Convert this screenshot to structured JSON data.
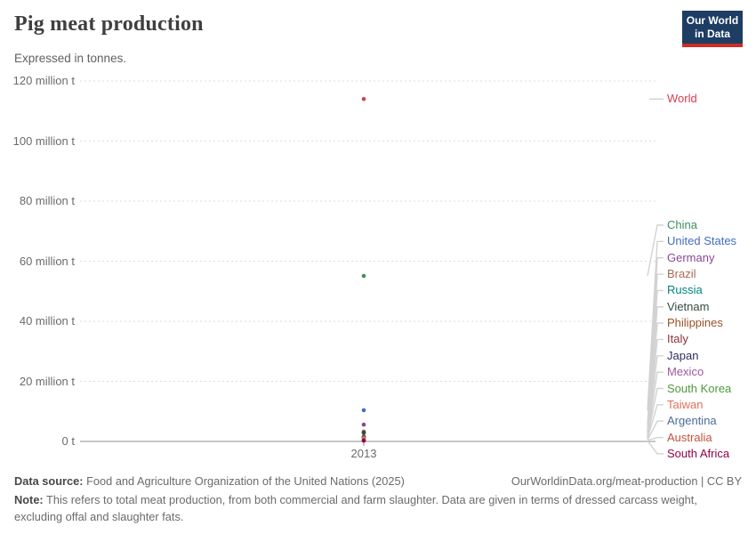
{
  "header": {
    "title": "Pig meat production",
    "subtitle": "Expressed in tonnes.",
    "logo": {
      "line1": "Our World",
      "line2": "in Data"
    }
  },
  "chart_data": {
    "type": "scatter",
    "title": "Pig meat production",
    "subtitle": "Expressed in tonnes.",
    "unit": "tonnes",
    "x": [
      2013
    ],
    "x_tick_label": "2013",
    "ylim_million_t": [
      0,
      120
    ],
    "grid": true,
    "legend_position": "right",
    "y_ticks": [
      {
        "value_million_t": 0,
        "label": "0 t"
      },
      {
        "value_million_t": 20,
        "label": "20 million t"
      },
      {
        "value_million_t": 40,
        "label": "40 million t"
      },
      {
        "value_million_t": 60,
        "label": "60 million t"
      },
      {
        "value_million_t": 80,
        "label": "80 million t"
      },
      {
        "value_million_t": 100,
        "label": "100 million t"
      },
      {
        "value_million_t": 120,
        "label": "120 million t"
      }
    ],
    "series": [
      {
        "name": "World",
        "year": 2013,
        "value_million_t": 114,
        "color": "#d73c50"
      },
      {
        "name": "China",
        "year": 2013,
        "value_million_t": 55.1,
        "color": "#3f8e60"
      },
      {
        "name": "United States",
        "year": 2013,
        "value_million_t": 10.4,
        "color": "#426bc1"
      },
      {
        "name": "Germany",
        "year": 2013,
        "value_million_t": 5.6,
        "color": "#8c4596"
      },
      {
        "name": "Brazil",
        "year": 2013,
        "value_million_t": 3.3,
        "color": "#a96a51"
      },
      {
        "name": "Russia",
        "year": 2013,
        "value_million_t": 3.0,
        "color": "#00847e"
      },
      {
        "name": "Vietnam",
        "year": 2013,
        "value_million_t": 2.9,
        "color": "#354a3e"
      },
      {
        "name": "Philippines",
        "year": 2013,
        "value_million_t": 1.7,
        "color": "#9a5129"
      },
      {
        "name": "Italy",
        "year": 2013,
        "value_million_t": 1.6,
        "color": "#883039"
      },
      {
        "name": "Japan",
        "year": 2013,
        "value_million_t": 1.3,
        "color": "#2d2e5f"
      },
      {
        "name": "Mexico",
        "year": 2013,
        "value_million_t": 1.25,
        "color": "#a2559c"
      },
      {
        "name": "South Korea",
        "year": 2013,
        "value_million_t": 1.2,
        "color": "#4d9a3e"
      },
      {
        "name": "Taiwan",
        "year": 2013,
        "value_million_t": 0.9,
        "color": "#e56e5a"
      },
      {
        "name": "Argentina",
        "year": 2013,
        "value_million_t": 0.45,
        "color": "#4c6a9c"
      },
      {
        "name": "Australia",
        "year": 2013,
        "value_million_t": 0.36,
        "color": "#c4523e"
      },
      {
        "name": "South Africa",
        "year": 2013,
        "value_million_t": 0.25,
        "color": "#970046"
      }
    ]
  },
  "footer": {
    "data_source_label": "Data source:",
    "data_source_text": "Food and Agriculture Organization of the United Nations (2025)",
    "link": "OurWorldinData.org/meat-production | CC BY",
    "note_label": "Note:",
    "note_text": "This refers to total meat production, from both commercial and farm slaughter. Data are given in terms of dressed carcass weight, excluding offal and slaughter fats."
  },
  "colors": {
    "logo_background": "#1d3d63",
    "logo_accent": "#cf2d23",
    "gridline": "#dcdcdc",
    "axis_line": "#8c8c8c",
    "tick_text": "#6b6b6b"
  }
}
